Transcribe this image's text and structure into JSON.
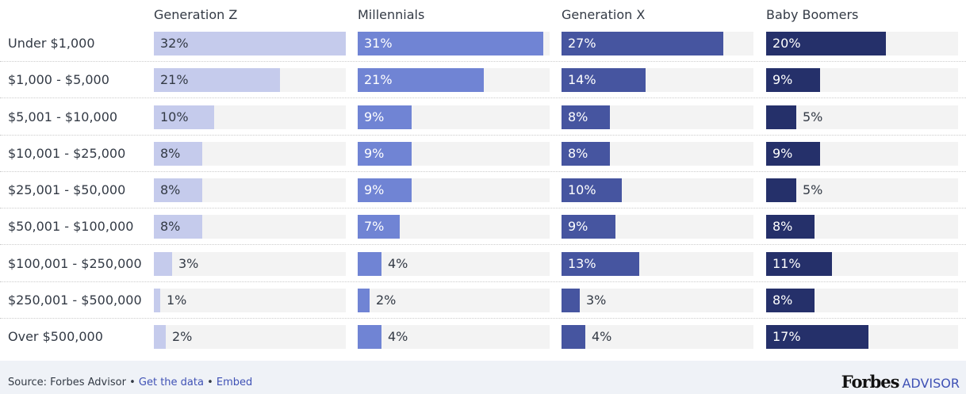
{
  "chart_data": {
    "type": "bar",
    "orientation": "horizontal",
    "layout": "small-multiples",
    "categories": [
      "Under $1,000",
      "$1,000 - $5,000",
      "$5,001 - $10,000",
      "$10,001 - $25,000",
      "$25,001 - $50,000",
      "$50,001 - $100,000",
      "$100,001 - $250,000",
      "$250,001 - $500,000",
      "Over $500,000"
    ],
    "series": [
      {
        "name": "Generation Z",
        "color": "#c5cbec",
        "text_color": "#333a45",
        "values": [
          32,
          21,
          10,
          8,
          8,
          8,
          3,
          1,
          2
        ]
      },
      {
        "name": "Millennials",
        "color": "#7084d4",
        "text_color": "#ffffff",
        "values": [
          31,
          21,
          9,
          9,
          9,
          7,
          4,
          2,
          4
        ]
      },
      {
        "name": "Generation X",
        "color": "#4655a0",
        "text_color": "#ffffff",
        "values": [
          27,
          14,
          8,
          8,
          10,
          9,
          13,
          3,
          4
        ]
      },
      {
        "name": "Baby Boomers",
        "color": "#25306a",
        "text_color": "#ffffff",
        "values": [
          20,
          9,
          5,
          9,
          5,
          8,
          11,
          8,
          17
        ]
      }
    ],
    "unit": "%",
    "xlim": [
      0,
      32
    ]
  },
  "footer": {
    "source": "Source: Forbes Advisor",
    "separator": "•",
    "get_data": "Get the data",
    "embed": "Embed",
    "logo_forbes": "Forbes",
    "logo_advisor": "ADVISOR"
  }
}
